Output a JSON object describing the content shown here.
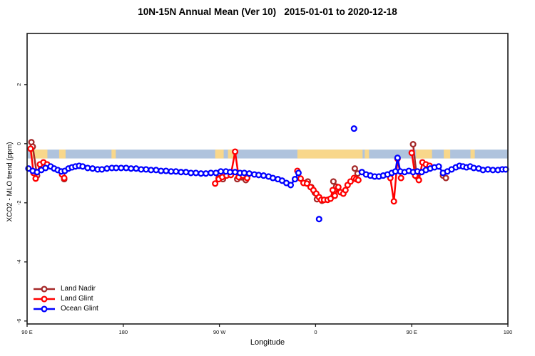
{
  "title": "10N-15N Annual Mean (Ver 10)   2015-01-01 to 2020-12-18",
  "legend": {
    "items": [
      {
        "label": "Land Nadir",
        "color": "#a52a2a"
      },
      {
        "label": "Land Glint",
        "color": "#ff0000"
      },
      {
        "label": "Ocean Glint",
        "color": "#0000ff"
      }
    ]
  },
  "colors": {
    "axis": "#1a1a1a",
    "tick_text": "#111111",
    "band_ocean": "#afc3dd",
    "band_land": "#f8d78b",
    "land_nadir": "#a52a2a",
    "land_glint": "#ff0000",
    "ocean_glint": "#0000ff"
  },
  "chart_data": {
    "type": "line",
    "title": "10N-15N Annual Mean (Ver 10)   2015-01-01 to 2020-12-18",
    "xlabel": "Longitude",
    "ylabel": "XCO2 - MLO trend (ppm)",
    "x_axis": {
      "note": "degrees eastward from left edge; axis wraps the globe 1.25 times",
      "range_deg": [
        0,
        450
      ],
      "ticks": [
        {
          "deg": 0,
          "label": "90 E"
        },
        {
          "deg": 90,
          "label": "180"
        },
        {
          "deg": 180,
          "label": "90 W"
        },
        {
          "deg": 270,
          "label": "0"
        },
        {
          "deg": 360,
          "label": "90 E"
        },
        {
          "deg": 450,
          "label": "180"
        }
      ]
    },
    "y_axis": {
      "range": [
        -6.1,
        3.73
      ],
      "ticks": [
        2,
        0,
        -2,
        -4,
        -6
      ]
    },
    "map_band": {
      "value_range": [
        -0.2,
        -0.5
      ],
      "land_segments_deg": [
        [
          4,
          19
        ],
        [
          30,
          36
        ],
        [
          79,
          83
        ],
        [
          176,
          184
        ],
        [
          188,
          193
        ],
        [
          253,
          314
        ],
        [
          316,
          320
        ],
        [
          364,
          379
        ],
        [
          390,
          396
        ],
        [
          415,
          419
        ]
      ]
    },
    "series": [
      {
        "name": "Land Nadir",
        "color_key": "land_nadir",
        "segments": [
          [
            [
              4,
              0.05
            ],
            [
              5.3,
              -0.1
            ],
            [
              9.3,
              -1.08
            ],
            [
              14,
              -0.75
            ]
          ],
          [
            [
              34.7,
              -1.2
            ]
          ],
          [
            [
              179.3,
              -1.16
            ],
            [
              183.3,
              -1.2
            ]
          ],
          [
            [
              196.7,
              -1.2
            ],
            [
              204.7,
              -1.23
            ]
          ],
          [
            [
              262.7,
              -1.28
            ],
            [
              266,
              -1.47
            ],
            [
              269.3,
              -1.66
            ],
            [
              271.3,
              -1.88
            ],
            [
              276,
              -1.93
            ]
          ],
          [
            [
              286.7,
              -1.28
            ],
            [
              289.3,
              -1.45
            ]
          ],
          [
            [
              306.7,
              -0.84
            ],
            [
              309.3,
              -1.01
            ]
          ],
          [
            [
              361.3,
              -0.02
            ],
            [
              364.7,
              -1.11
            ]
          ],
          [
            [
              389.3,
              -1.08
            ],
            [
              392,
              -1.16
            ]
          ]
        ]
      },
      {
        "name": "Land Glint",
        "color_key": "land_glint",
        "segments": [
          [
            [
              3.3,
              -0.17
            ],
            [
              6,
              -0.99
            ],
            [
              8,
              -1.18
            ],
            [
              12,
              -0.7
            ],
            [
              15.3,
              -0.63
            ],
            [
              18.7,
              -0.7
            ]
          ],
          [
            [
              32.7,
              -1.04
            ],
            [
              34.7,
              -1.16
            ]
          ],
          [
            [
              176,
              -1.35
            ],
            [
              179.3,
              -1.2
            ],
            [
              182.7,
              -1.13
            ],
            [
              186.7,
              -1.08
            ],
            [
              190.7,
              -1.06
            ],
            [
              194.7,
              -0.27
            ],
            [
              198,
              -1.13
            ],
            [
              202,
              -1.08
            ],
            [
              206,
              -1.16
            ]
          ],
          [
            [
              253,
              -0.92
            ],
            [
              256,
              -1.18
            ],
            [
              258.7,
              -1.33
            ],
            [
              262,
              -1.35
            ],
            [
              265.3,
              -1.47
            ],
            [
              268,
              -1.57
            ],
            [
              270.7,
              -1.69
            ],
            [
              273.3,
              -1.81
            ],
            [
              275.3,
              -1.9
            ],
            [
              278,
              -1.9
            ],
            [
              281.3,
              -1.9
            ],
            [
              284,
              -1.86
            ],
            [
              286,
              -1.57
            ],
            [
              288,
              -1.76
            ],
            [
              291.3,
              -1.47
            ],
            [
              293.3,
              -1.64
            ],
            [
              296,
              -1.69
            ],
            [
              298,
              -1.57
            ],
            [
              300,
              -1.4
            ],
            [
              302.7,
              -1.28
            ],
            [
              306,
              -1.16
            ],
            [
              308,
              -1.2
            ],
            [
              310,
              -1.23
            ]
          ],
          [
            [
              340,
              -1.16
            ],
            [
              343.3,
              -1.95
            ],
            [
              346.7,
              -0.51
            ],
            [
              350,
              -1.16
            ]
          ],
          [
            [
              360,
              -0.31
            ],
            [
              363.3,
              -1.08
            ],
            [
              366.7,
              -1.23
            ],
            [
              370,
              -0.63
            ],
            [
              373.3,
              -0.7
            ],
            [
              376.7,
              -0.75
            ]
          ]
        ]
      },
      {
        "name": "Ocean Glint",
        "color_key": "ocean_glint",
        "segments": [
          [
            [
              1.3,
              -0.84
            ],
            [
              5.3,
              -0.92
            ],
            [
              9.3,
              -0.96
            ],
            [
              13.3,
              -0.89
            ],
            [
              17.3,
              -0.82
            ],
            [
              22,
              -0.77
            ],
            [
              25.3,
              -0.84
            ],
            [
              28.7,
              -0.89
            ],
            [
              32,
              -0.94
            ],
            [
              35.3,
              -0.92
            ],
            [
              38.7,
              -0.84
            ],
            [
              42,
              -0.8
            ],
            [
              45.3,
              -0.77
            ],
            [
              48.7,
              -0.75
            ],
            [
              52,
              -0.77
            ],
            [
              56.7,
              -0.82
            ],
            [
              61.3,
              -0.84
            ],
            [
              66,
              -0.87
            ],
            [
              70,
              -0.87
            ],
            [
              74.7,
              -0.84
            ],
            [
              79.3,
              -0.82
            ],
            [
              83.3,
              -0.82
            ],
            [
              88,
              -0.82
            ],
            [
              92.7,
              -0.82
            ],
            [
              97.3,
              -0.84
            ],
            [
              102,
              -0.84
            ],
            [
              106.7,
              -0.87
            ],
            [
              111.3,
              -0.87
            ],
            [
              116,
              -0.89
            ],
            [
              120.7,
              -0.89
            ],
            [
              125.3,
              -0.92
            ],
            [
              130,
              -0.92
            ],
            [
              134.7,
              -0.94
            ],
            [
              139.3,
              -0.94
            ],
            [
              144,
              -0.96
            ],
            [
              148.7,
              -0.96
            ],
            [
              153.3,
              -0.99
            ],
            [
              158,
              -0.99
            ],
            [
              162.7,
              -1.01
            ],
            [
              167.3,
              -1.01
            ],
            [
              172,
              -0.99
            ],
            [
              176.7,
              -0.99
            ],
            [
              181.3,
              -0.94
            ],
            [
              186,
              -0.94
            ],
            [
              190,
              -0.96
            ],
            [
              194.7,
              -0.96
            ],
            [
              199.3,
              -0.99
            ],
            [
              203.3,
              -0.99
            ],
            [
              208,
              -1.01
            ],
            [
              212.7,
              -1.04
            ],
            [
              216.7,
              -1.06
            ],
            [
              221.3,
              -1.08
            ],
            [
              226,
              -1.11
            ],
            [
              230,
              -1.16
            ],
            [
              234.7,
              -1.2
            ],
            [
              238.7,
              -1.25
            ],
            [
              242.7,
              -1.33
            ],
            [
              246.7,
              -1.4
            ],
            [
              250.7,
              -1.2
            ],
            [
              254,
              -0.99
            ]
          ],
          [
            [
              273.3,
              -2.55
            ]
          ],
          [
            [
              306,
              0.51
            ]
          ],
          [
            [
              313.3,
              -0.96
            ],
            [
              317.3,
              -1.04
            ],
            [
              321.3,
              -1.08
            ],
            [
              325.3,
              -1.11
            ],
            [
              329.3,
              -1.11
            ],
            [
              333.3,
              -1.08
            ],
            [
              337.3,
              -1.04
            ],
            [
              341.3,
              -0.99
            ],
            [
              344.7,
              -0.94
            ],
            [
              346.7,
              -0.48
            ],
            [
              349.3,
              -0.94
            ],
            [
              353.3,
              -0.96
            ],
            [
              357.3,
              -0.92
            ],
            [
              361.3,
              -0.96
            ],
            [
              365.3,
              -0.94
            ],
            [
              369.3,
              -0.96
            ],
            [
              373.3,
              -0.89
            ],
            [
              377.3,
              -0.84
            ],
            [
              381.3,
              -0.8
            ],
            [
              385.3,
              -0.77
            ],
            [
              389.3,
              -0.99
            ],
            [
              393.3,
              -0.94
            ],
            [
              397.3,
              -0.87
            ],
            [
              401.3,
              -0.8
            ],
            [
              404.7,
              -0.75
            ],
            [
              408,
              -0.77
            ],
            [
              411.3,
              -0.8
            ],
            [
              414.7,
              -0.77
            ],
            [
              418,
              -0.82
            ],
            [
              422.7,
              -0.84
            ],
            [
              426.7,
              -0.89
            ],
            [
              431.3,
              -0.87
            ],
            [
              436,
              -0.89
            ],
            [
              440.7,
              -0.89
            ],
            [
              444.7,
              -0.87
            ],
            [
              448,
              -0.87
            ]
          ]
        ]
      }
    ],
    "legend_position": "bottom-left",
    "grid": false
  }
}
